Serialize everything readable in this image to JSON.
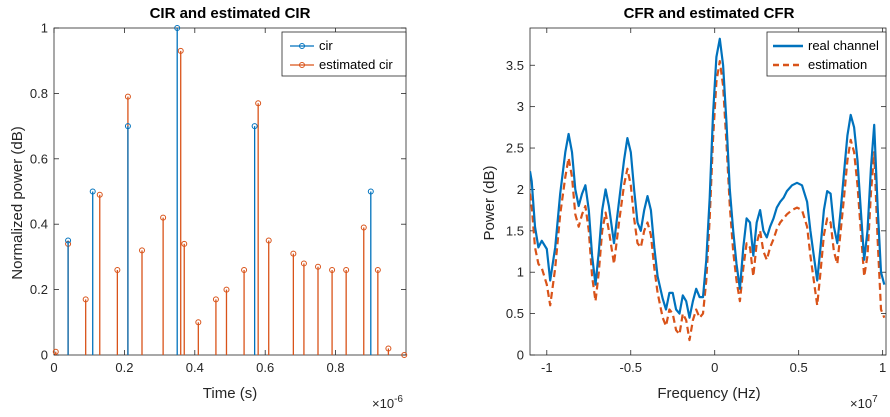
{
  "figure": {
    "background": "#ffffff",
    "axis_color": "#262626"
  },
  "chart_data": [
    {
      "type": "stem",
      "title": "CIR and estimated CIR",
      "xlabel": "Time (s)",
      "ylabel": "Normalized power (dB)",
      "xlim": [
        0,
        1e-06
      ],
      "ylim": [
        0,
        1
      ],
      "x_exponent_label": "×10",
      "x_exponent_power": "-6",
      "xticks": [
        0,
        0.2,
        0.4,
        0.6,
        0.8
      ],
      "xtick_labels": [
        "0",
        "0.2",
        "0.4",
        "0.6",
        "0.8"
      ],
      "yticks": [
        0,
        0.2,
        0.4,
        0.6,
        0.8,
        1
      ],
      "ytick_labels": [
        "0",
        "0.2",
        "0.4",
        "0.6",
        "0.8",
        "1"
      ],
      "grid": false,
      "legend": {
        "location": "top-right"
      },
      "series": [
        {
          "name": "cir",
          "color": "#0072BD",
          "x": [
            0.04,
            0.11,
            0.21,
            0.35,
            0.57,
            0.9
          ],
          "y": [
            0.35,
            0.5,
            0.7,
            1.0,
            0.7,
            0.5
          ]
        },
        {
          "name": "estimated cir",
          "color": "#D95319",
          "x": [
            0.005,
            0.04,
            0.09,
            0.13,
            0.18,
            0.21,
            0.25,
            0.31,
            0.36,
            0.37,
            0.41,
            0.46,
            0.49,
            0.54,
            0.58,
            0.61,
            0.68,
            0.71,
            0.75,
            0.79,
            0.83,
            0.88,
            0.92,
            0.95,
            0.995
          ],
          "y": [
            0.01,
            0.34,
            0.17,
            0.49,
            0.26,
            0.79,
            0.32,
            0.42,
            0.93,
            0.34,
            0.1,
            0.17,
            0.2,
            0.26,
            0.77,
            0.35,
            0.31,
            0.28,
            0.27,
            0.26,
            0.26,
            0.39,
            0.26,
            0.02,
            0.0
          ]
        }
      ]
    },
    {
      "type": "line",
      "title": "CFR and estimated CFR",
      "xlabel": "Frequency (Hz)",
      "ylabel": "Power (dB)",
      "xlim": [
        -11000000,
        10200000
      ],
      "ylim": [
        0,
        3.95
      ],
      "x_exponent_label": "×10",
      "x_exponent_power": "7",
      "xticks": [
        -1,
        -0.5,
        0,
        0.5,
        1
      ],
      "xtick_labels": [
        "-1",
        "-0.5",
        "0",
        "0.5",
        "1"
      ],
      "yticks": [
        0,
        0.5,
        1,
        1.5,
        2,
        2.5,
        3,
        3.5
      ],
      "ytick_labels": [
        "0",
        "0.5",
        "1",
        "1.5",
        "2",
        "2.5",
        "3",
        "3.5"
      ],
      "grid": false,
      "legend": {
        "location": "top-right"
      },
      "series": [
        {
          "name": "real channel",
          "color": "#0072BD",
          "style": "solid",
          "x": [
            -1.1,
            -1.09,
            -1.07,
            -1.05,
            -1.03,
            -1.0,
            -0.98,
            -0.95,
            -0.92,
            -0.89,
            -0.87,
            -0.85,
            -0.83,
            -0.81,
            -0.79,
            -0.77,
            -0.75,
            -0.73,
            -0.71,
            -0.69,
            -0.67,
            -0.65,
            -0.63,
            -0.6,
            -0.57,
            -0.54,
            -0.52,
            -0.5,
            -0.48,
            -0.46,
            -0.44,
            -0.42,
            -0.4,
            -0.38,
            -0.36,
            -0.34,
            -0.31,
            -0.29,
            -0.27,
            -0.25,
            -0.23,
            -0.21,
            -0.19,
            -0.17,
            -0.15,
            -0.13,
            -0.11,
            -0.09,
            -0.07,
            -0.05,
            -0.03,
            -0.01,
            0.01,
            0.03,
            0.05,
            0.07,
            0.09,
            0.11,
            0.13,
            0.15,
            0.17,
            0.19,
            0.21,
            0.23,
            0.25,
            0.27,
            0.29,
            0.31,
            0.33,
            0.35,
            0.37,
            0.39,
            0.41,
            0.43,
            0.46,
            0.49,
            0.52,
            0.55,
            0.57,
            0.59,
            0.61,
            0.63,
            0.65,
            0.67,
            0.69,
            0.71,
            0.73,
            0.75,
            0.77,
            0.79,
            0.81,
            0.83,
            0.85,
            0.87,
            0.89,
            0.91,
            0.93,
            0.95,
            0.97,
            0.99,
            1.01
          ],
          "y": [
            2.22,
            2.1,
            1.55,
            1.3,
            1.38,
            1.28,
            0.9,
            1.3,
            1.95,
            2.45,
            2.67,
            2.45,
            2.0,
            1.8,
            1.95,
            2.05,
            1.75,
            1.2,
            0.85,
            1.25,
            1.75,
            2.0,
            1.8,
            1.35,
            1.85,
            2.35,
            2.62,
            2.45,
            2.0,
            1.6,
            1.5,
            1.75,
            1.92,
            1.75,
            1.3,
            0.95,
            0.68,
            0.55,
            0.75,
            0.75,
            0.55,
            0.5,
            0.72,
            0.65,
            0.45,
            0.65,
            0.8,
            0.7,
            0.7,
            1.15,
            1.9,
            2.9,
            3.6,
            3.82,
            3.5,
            2.8,
            2.0,
            1.5,
            1.1,
            0.8,
            1.3,
            1.65,
            1.6,
            1.2,
            1.6,
            1.75,
            1.5,
            1.42,
            1.55,
            1.65,
            1.78,
            1.85,
            1.9,
            1.98,
            2.05,
            2.08,
            2.05,
            1.85,
            1.5,
            1.2,
            0.9,
            1.3,
            1.75,
            1.98,
            1.95,
            1.55,
            1.35,
            1.75,
            2.2,
            2.65,
            2.9,
            2.75,
            2.35,
            1.75,
            1.15,
            1.5,
            2.25,
            2.78,
            1.8,
            1.0,
            0.85
          ]
        },
        {
          "name": "estimation",
          "color": "#D95319",
          "style": "dashed",
          "x": [
            -1.1,
            -1.09,
            -1.07,
            -1.05,
            -1.03,
            -1.0,
            -0.98,
            -0.95,
            -0.92,
            -0.89,
            -0.87,
            -0.85,
            -0.83,
            -0.81,
            -0.79,
            -0.77,
            -0.75,
            -0.73,
            -0.71,
            -0.69,
            -0.67,
            -0.65,
            -0.63,
            -0.6,
            -0.57,
            -0.54,
            -0.52,
            -0.5,
            -0.48,
            -0.46,
            -0.44,
            -0.42,
            -0.4,
            -0.38,
            -0.36,
            -0.34,
            -0.31,
            -0.29,
            -0.27,
            -0.25,
            -0.23,
            -0.21,
            -0.19,
            -0.17,
            -0.15,
            -0.13,
            -0.11,
            -0.09,
            -0.07,
            -0.05,
            -0.03,
            -0.01,
            0.01,
            0.03,
            0.05,
            0.07,
            0.09,
            0.11,
            0.13,
            0.15,
            0.17,
            0.19,
            0.21,
            0.23,
            0.25,
            0.27,
            0.29,
            0.31,
            0.33,
            0.35,
            0.37,
            0.39,
            0.41,
            0.43,
            0.46,
            0.49,
            0.52,
            0.55,
            0.57,
            0.59,
            0.61,
            0.63,
            0.65,
            0.67,
            0.69,
            0.71,
            0.73,
            0.75,
            0.77,
            0.79,
            0.81,
            0.83,
            0.85,
            0.87,
            0.89,
            0.91,
            0.93,
            0.95,
            0.97,
            0.99,
            1.01
          ],
          "y": [
            1.95,
            1.8,
            1.3,
            1.1,
            1.05,
            0.85,
            0.6,
            1.05,
            1.7,
            2.15,
            2.38,
            2.15,
            1.7,
            1.55,
            1.7,
            1.8,
            1.5,
            0.95,
            0.65,
            1.0,
            1.5,
            1.72,
            1.5,
            1.1,
            1.6,
            2.05,
            2.25,
            2.05,
            1.65,
            1.35,
            1.3,
            1.5,
            1.6,
            1.45,
            1.05,
            0.75,
            0.45,
            0.35,
            0.55,
            0.5,
            0.3,
            0.25,
            0.5,
            0.42,
            0.18,
            0.42,
            0.55,
            0.45,
            0.5,
            0.9,
            1.65,
            2.6,
            3.3,
            3.55,
            3.25,
            2.55,
            1.8,
            1.25,
            0.9,
            0.65,
            1.05,
            1.35,
            1.3,
            0.95,
            1.35,
            1.5,
            1.25,
            1.15,
            1.3,
            1.4,
            1.52,
            1.6,
            1.65,
            1.7,
            1.75,
            1.78,
            1.75,
            1.55,
            1.2,
            0.9,
            0.6,
            1.0,
            1.45,
            1.65,
            1.6,
            1.25,
            1.1,
            1.5,
            1.9,
            2.35,
            2.6,
            2.45,
            2.05,
            1.5,
            0.95,
            1.2,
            1.95,
            2.45,
            1.4,
            0.55,
            0.45
          ]
        }
      ]
    }
  ]
}
